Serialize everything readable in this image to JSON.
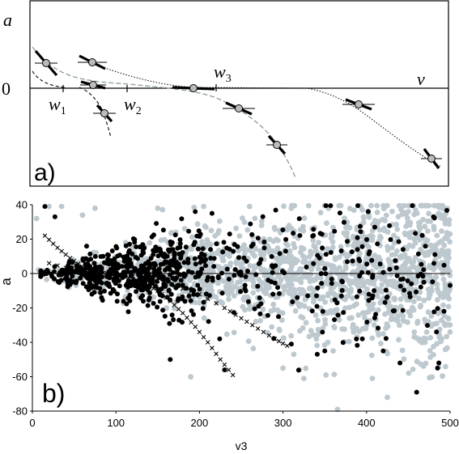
{
  "colors": {
    "black_points": "#000000",
    "gray_points": "#bdc9cf",
    "cross_points": "#000000",
    "dashed_gray_curve": "#8a9a9a",
    "dashed_black_curve": "#000000",
    "dotted_curve": "#000000"
  },
  "panel_a": {
    "panel_label": "a)",
    "y_label": "a",
    "x_label": "v",
    "zero_label": "0",
    "markers": [
      {
        "label": "w",
        "sub": "1"
      },
      {
        "label": "w",
        "sub": "2"
      },
      {
        "label": "w",
        "sub": "3"
      }
    ]
  },
  "chart_data": {
    "type": "scatter",
    "panel_label": "b)",
    "xlabel": "v3",
    "ylabel": "a",
    "xlim": [
      0,
      500
    ],
    "ylim": [
      -80,
      40
    ],
    "xticks": [
      0,
      100,
      200,
      300,
      400,
      500
    ],
    "yticks": [
      -80,
      -60,
      -40,
      -20,
      0,
      20,
      40
    ],
    "grid": false,
    "series": [
      {
        "marker": "filled-circle-gray",
        "color": "#bdc9cf",
        "approx_count": 1500,
        "x_range": [
          0,
          500
        ],
        "spread_grows_with_x": true,
        "outliers": [
          [
            5,
            32
          ],
          [
            20,
            39
          ],
          [
            35,
            39
          ],
          [
            60,
            34
          ],
          [
            75,
            38
          ],
          [
            150,
            38
          ],
          [
            205,
            39
          ],
          [
            260,
            39
          ],
          [
            310,
            38
          ],
          [
            395,
            37
          ],
          [
            450,
            36
          ],
          [
            485,
            34
          ],
          [
            495,
            35
          ],
          [
            300,
            -55
          ],
          [
            340,
            -38
          ],
          [
            360,
            -45
          ],
          [
            420,
            -35
          ],
          [
            470,
            -40
          ],
          [
            490,
            -38
          ]
        ]
      },
      {
        "marker": "filled-circle-black",
        "color": "#000000",
        "approx_count": 750,
        "x_range": [
          10,
          500
        ],
        "highlighted": [
          [
            15,
            39
          ],
          [
            27,
            33
          ],
          [
            165,
            -50
          ],
          [
            230,
            -56
          ],
          [
            460,
            -69
          ],
          [
            485,
            -55
          ],
          [
            480,
            33
          ],
          [
            440,
            -52
          ],
          [
            420,
            -45
          ],
          [
            395,
            -38
          ],
          [
            310,
            -41
          ],
          [
            350,
            -45
          ],
          [
            215,
            35
          ],
          [
            195,
            36
          ]
        ]
      },
      {
        "marker": "cross",
        "color": "#000000",
        "curves": [
          {
            "x": [
              15,
              30,
              45,
              60,
              75,
              90,
              105,
              120,
              135,
              150,
              165,
              180,
              195,
              210,
              225,
              240
            ],
            "y": [
              22,
              15,
              9,
              4,
              1,
              0,
              -1,
              -3,
              -6,
              -10,
              -16,
              -23,
              -31,
              -40,
              -50,
              -59
            ]
          },
          {
            "x": [
              20,
              50,
              80,
              110,
              140,
              170,
              200,
              230,
              250,
              270,
              290,
              305
            ],
            "y": [
              6,
              2,
              0,
              -1,
              -3,
              -7,
              -12,
              -20,
              -26,
              -32,
              -38,
              -42
            ]
          }
        ]
      }
    ]
  }
}
